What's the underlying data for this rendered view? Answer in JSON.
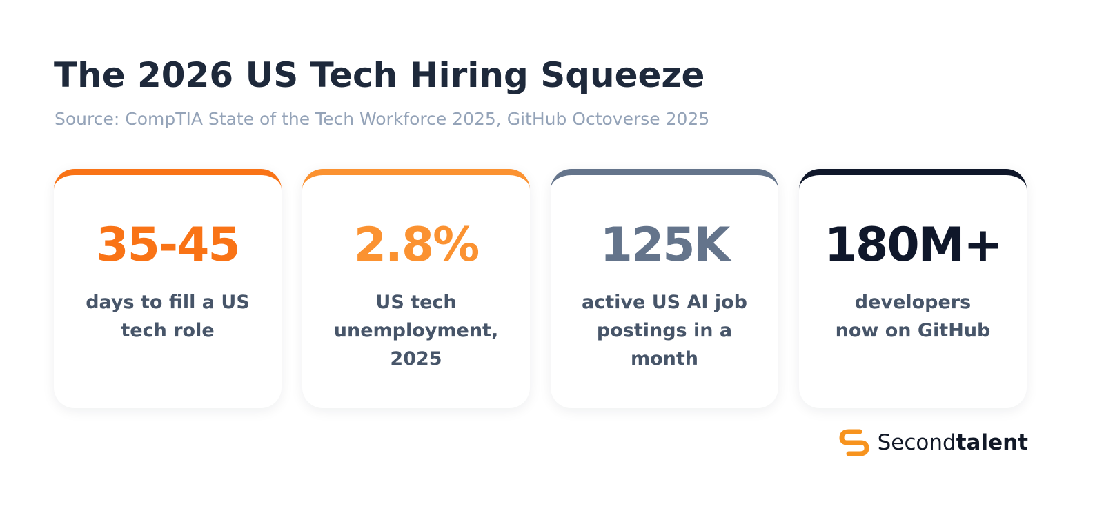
{
  "header": {
    "title": "The 2026 US Tech Hiring Squeeze",
    "source": "Source: CompTIA State of the Tech Workforce 2025, GitHub Octoverse 2025"
  },
  "cards": [
    {
      "value": "35-45",
      "label": "days to fill a US tech role",
      "color": "#f97316"
    },
    {
      "value": "2.8%",
      "label": "US tech unemployment, 2025",
      "color": "#fb9231"
    },
    {
      "value": "125K",
      "label": "active US AI job postings in a month",
      "color": "#64748b"
    },
    {
      "value": "180M+",
      "label": "developers now on GitHub",
      "color": "#0f172a"
    }
  ],
  "logo": {
    "regular": "Second",
    "bold": "talent"
  }
}
